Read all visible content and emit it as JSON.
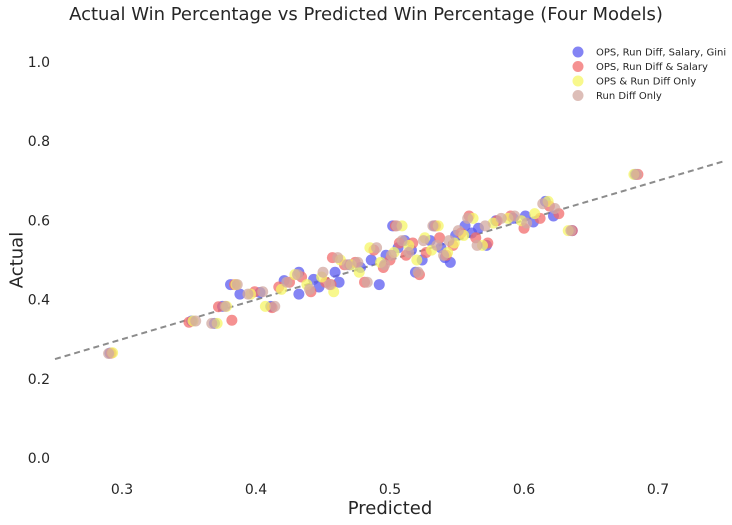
{
  "chart_data": {
    "type": "scatter",
    "title": "Actual Win Percentage vs Predicted Win Percentage (Four Models)",
    "xlabel": "Predicted",
    "ylabel": "Actual",
    "xlim": [
      0.25,
      0.75
    ],
    "ylim": [
      -0.05,
      1.05
    ],
    "x_ticks": [
      0.3,
      0.4,
      0.5,
      0.6,
      0.7
    ],
    "y_ticks": [
      0.0,
      0.2,
      0.4,
      0.6,
      0.8,
      1.0
    ],
    "grid": false,
    "legend_position": "top-right",
    "reference_line": {
      "style": "dashed",
      "color": "#8c8c8c",
      "x": [
        0.25,
        0.75
      ],
      "y": [
        0.25,
        0.75
      ]
    },
    "series": [
      {
        "name": "OPS, Run Diff, Salary, Gini",
        "color": "#5b5bf0",
        "points": [
          [
            0.291,
            0.265
          ],
          [
            0.352,
            0.346
          ],
          [
            0.369,
            0.34
          ],
          [
            0.375,
            0.383
          ],
          [
            0.381,
            0.438
          ],
          [
            0.388,
            0.414
          ],
          [
            0.403,
            0.418
          ],
          [
            0.411,
            0.383
          ],
          [
            0.421,
            0.448
          ],
          [
            0.432,
            0.414
          ],
          [
            0.432,
            0.469
          ],
          [
            0.443,
            0.451
          ],
          [
            0.447,
            0.432
          ],
          [
            0.459,
            0.469
          ],
          [
            0.462,
            0.444
          ],
          [
            0.47,
            0.488
          ],
          [
            0.478,
            0.481
          ],
          [
            0.486,
            0.5
          ],
          [
            0.492,
            0.438
          ],
          [
            0.497,
            0.512
          ],
          [
            0.502,
            0.586
          ],
          [
            0.506,
            0.531
          ],
          [
            0.511,
            0.549
          ],
          [
            0.516,
            0.525
          ],
          [
            0.519,
            0.469
          ],
          [
            0.524,
            0.5
          ],
          [
            0.53,
            0.549
          ],
          [
            0.533,
            0.586
          ],
          [
            0.538,
            0.531
          ],
          [
            0.541,
            0.506
          ],
          [
            0.545,
            0.494
          ],
          [
            0.549,
            0.562
          ],
          [
            0.556,
            0.586
          ],
          [
            0.561,
            0.568
          ],
          [
            0.566,
            0.58
          ],
          [
            0.572,
            0.537
          ],
          [
            0.579,
            0.599
          ],
          [
            0.592,
            0.605
          ],
          [
            0.601,
            0.611
          ],
          [
            0.607,
            0.596
          ],
          [
            0.616,
            0.648
          ],
          [
            0.622,
            0.611
          ],
          [
            0.636,
            0.574
          ],
          [
            0.683,
            0.716
          ]
        ]
      },
      {
        "name": "OPS, Run Diff & Salary",
        "color": "#f26c6c",
        "points": [
          [
            0.292,
            0.265
          ],
          [
            0.35,
            0.343
          ],
          [
            0.372,
            0.382
          ],
          [
            0.382,
            0.348
          ],
          [
            0.384,
            0.438
          ],
          [
            0.399,
            0.42
          ],
          [
            0.412,
            0.38
          ],
          [
            0.417,
            0.432
          ],
          [
            0.425,
            0.444
          ],
          [
            0.434,
            0.457
          ],
          [
            0.441,
            0.42
          ],
          [
            0.452,
            0.444
          ],
          [
            0.456,
            0.438
          ],
          [
            0.457,
            0.506
          ],
          [
            0.466,
            0.488
          ],
          [
            0.474,
            0.494
          ],
          [
            0.481,
            0.444
          ],
          [
            0.488,
            0.525
          ],
          [
            0.495,
            0.481
          ],
          [
            0.5,
            0.5
          ],
          [
            0.504,
            0.586
          ],
          [
            0.507,
            0.543
          ],
          [
            0.512,
            0.512
          ],
          [
            0.517,
            0.543
          ],
          [
            0.522,
            0.463
          ],
          [
            0.527,
            0.519
          ],
          [
            0.534,
            0.586
          ],
          [
            0.537,
            0.556
          ],
          [
            0.542,
            0.512
          ],
          [
            0.547,
            0.537
          ],
          [
            0.553,
            0.568
          ],
          [
            0.559,
            0.611
          ],
          [
            0.564,
            0.556
          ],
          [
            0.573,
            0.543
          ],
          [
            0.58,
            0.599
          ],
          [
            0.59,
            0.611
          ],
          [
            0.6,
            0.58
          ],
          [
            0.612,
            0.605
          ],
          [
            0.619,
            0.636
          ],
          [
            0.626,
            0.617
          ],
          [
            0.636,
            0.574
          ],
          [
            0.685,
            0.716
          ]
        ]
      },
      {
        "name": "OPS & Run Diff Only",
        "color": "#f5f566",
        "points": [
          [
            0.293,
            0.266
          ],
          [
            0.353,
            0.346
          ],
          [
            0.371,
            0.34
          ],
          [
            0.378,
            0.383
          ],
          [
            0.385,
            0.438
          ],
          [
            0.396,
            0.414
          ],
          [
            0.407,
            0.383
          ],
          [
            0.419,
            0.426
          ],
          [
            0.429,
            0.463
          ],
          [
            0.438,
            0.438
          ],
          [
            0.449,
            0.457
          ],
          [
            0.458,
            0.42
          ],
          [
            0.463,
            0.5
          ],
          [
            0.471,
            0.488
          ],
          [
            0.477,
            0.469
          ],
          [
            0.485,
            0.531
          ],
          [
            0.493,
            0.494
          ],
          [
            0.503,
            0.519
          ],
          [
            0.509,
            0.586
          ],
          [
            0.514,
            0.537
          ],
          [
            0.52,
            0.5
          ],
          [
            0.526,
            0.556
          ],
          [
            0.531,
            0.525
          ],
          [
            0.536,
            0.586
          ],
          [
            0.543,
            0.519
          ],
          [
            0.548,
            0.543
          ],
          [
            0.555,
            0.562
          ],
          [
            0.562,
            0.605
          ],
          [
            0.569,
            0.537
          ],
          [
            0.577,
            0.593
          ],
          [
            0.588,
            0.605
          ],
          [
            0.598,
            0.599
          ],
          [
            0.608,
            0.617
          ],
          [
            0.618,
            0.648
          ],
          [
            0.633,
            0.574
          ],
          [
            0.682,
            0.716
          ]
        ]
      },
      {
        "name": "Run Diff Only",
        "color": "#d2a8a0",
        "points": [
          [
            0.29,
            0.264
          ],
          [
            0.355,
            0.346
          ],
          [
            0.367,
            0.34
          ],
          [
            0.377,
            0.383
          ],
          [
            0.386,
            0.438
          ],
          [
            0.394,
            0.414
          ],
          [
            0.405,
            0.42
          ],
          [
            0.414,
            0.383
          ],
          [
            0.423,
            0.444
          ],
          [
            0.431,
            0.463
          ],
          [
            0.44,
            0.426
          ],
          [
            0.45,
            0.469
          ],
          [
            0.455,
            0.438
          ],
          [
            0.461,
            0.506
          ],
          [
            0.468,
            0.488
          ],
          [
            0.476,
            0.494
          ],
          [
            0.483,
            0.444
          ],
          [
            0.49,
            0.531
          ],
          [
            0.496,
            0.488
          ],
          [
            0.501,
            0.512
          ],
          [
            0.505,
            0.586
          ],
          [
            0.509,
            0.549
          ],
          [
            0.514,
            0.519
          ],
          [
            0.521,
            0.469
          ],
          [
            0.525,
            0.549
          ],
          [
            0.532,
            0.586
          ],
          [
            0.535,
            0.537
          ],
          [
            0.54,
            0.512
          ],
          [
            0.544,
            0.549
          ],
          [
            0.551,
            0.574
          ],
          [
            0.558,
            0.605
          ],
          [
            0.565,
            0.537
          ],
          [
            0.571,
            0.586
          ],
          [
            0.583,
            0.605
          ],
          [
            0.593,
            0.611
          ],
          [
            0.602,
            0.593
          ],
          [
            0.614,
            0.642
          ],
          [
            0.623,
            0.63
          ],
          [
            0.635,
            0.574
          ],
          [
            0.684,
            0.716
          ]
        ]
      }
    ]
  }
}
